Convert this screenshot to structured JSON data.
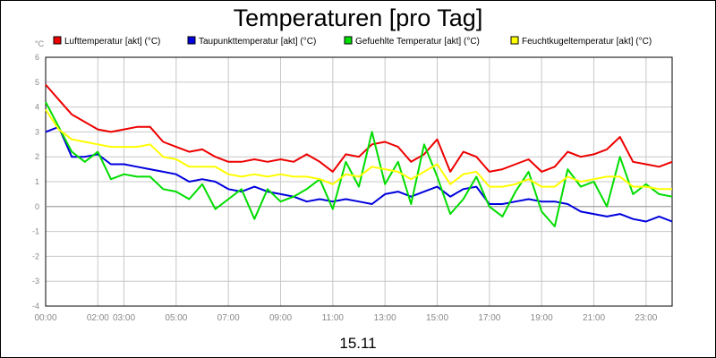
{
  "chart_data": {
    "type": "line",
    "title": "Temperaturen [pro Tag]",
    "unit_label": "°C",
    "xlabel": "15.11",
    "ylim": [
      -4,
      6
    ],
    "y_ticks": [
      "6",
      "5",
      "4",
      "3",
      "2",
      "1",
      "0",
      "-1",
      "-2",
      "-3",
      "-4"
    ],
    "x_ticks": [
      {
        "h": 0,
        "label": "00:00"
      },
      {
        "h": 2,
        "label": "02:00"
      },
      {
        "h": 3,
        "label": "03:00"
      },
      {
        "h": 5,
        "label": "05:00"
      },
      {
        "h": 7,
        "label": "07:00"
      },
      {
        "h": 9,
        "label": "09:00"
      },
      {
        "h": 11,
        "label": "11:00"
      },
      {
        "h": 13,
        "label": "13:00"
      },
      {
        "h": 15,
        "label": "15:00"
      },
      {
        "h": 17,
        "label": "17:00"
      },
      {
        "h": 19,
        "label": "19:00"
      },
      {
        "h": 21,
        "label": "21:00"
      },
      {
        "h": 23,
        "label": "23:00"
      }
    ],
    "grid": true,
    "legend_position": "top",
    "x": [
      0,
      0.5,
      1,
      1.5,
      2,
      2.5,
      3,
      3.5,
      4,
      4.5,
      5,
      5.5,
      6,
      6.5,
      7,
      7.5,
      8,
      8.5,
      9,
      9.5,
      10,
      10.5,
      11,
      11.5,
      12,
      12.5,
      13,
      13.5,
      14,
      14.5,
      15,
      15.5,
      16,
      16.5,
      17,
      17.5,
      18,
      18.5,
      19,
      19.5,
      20,
      20.5,
      21,
      21.5,
      22,
      22.5,
      23,
      23.5,
      24
    ],
    "series": [
      {
        "name": "Lufttemperatur [akt] (°C)",
        "color": "#ee0000",
        "values": [
          4.9,
          4.3,
          3.7,
          3.4,
          3.1,
          3.0,
          3.1,
          3.2,
          3.2,
          2.6,
          2.4,
          2.2,
          2.3,
          2.0,
          1.8,
          1.8,
          1.9,
          1.8,
          1.9,
          1.8,
          2.1,
          1.8,
          1.4,
          2.1,
          2.0,
          2.5,
          2.6,
          2.4,
          1.8,
          2.1,
          2.7,
          1.4,
          2.2,
          2.0,
          1.4,
          1.5,
          1.7,
          1.9,
          1.4,
          1.6,
          2.2,
          2.0,
          2.1,
          2.3,
          2.8,
          1.8,
          1.7,
          1.6,
          1.8
        ]
      },
      {
        "name": "Taupunkttemperatur [akt] (°C)",
        "color": "#0000dd",
        "values": [
          3.0,
          3.2,
          2.0,
          2.0,
          2.1,
          1.7,
          1.7,
          1.6,
          1.5,
          1.4,
          1.3,
          1.0,
          1.1,
          1.0,
          0.7,
          0.6,
          0.8,
          0.6,
          0.5,
          0.4,
          0.2,
          0.3,
          0.2,
          0.3,
          0.2,
          0.1,
          0.5,
          0.6,
          0.4,
          0.6,
          0.8,
          0.4,
          0.7,
          0.8,
          0.1,
          0.1,
          0.2,
          0.3,
          0.2,
          0.2,
          0.1,
          -0.2,
          -0.3,
          -0.4,
          -0.3,
          -0.5,
          -0.6,
          -0.4,
          -0.6
        ]
      },
      {
        "name": "Gefuehlte Temperatur [akt] (°C)",
        "color": "#00dd00",
        "values": [
          4.2,
          3.2,
          2.2,
          1.8,
          2.2,
          1.1,
          1.3,
          1.2,
          1.2,
          0.7,
          0.6,
          0.3,
          0.9,
          -0.1,
          0.3,
          0.7,
          -0.5,
          0.7,
          0.2,
          0.4,
          0.7,
          1.1,
          -0.1,
          1.8,
          0.8,
          3.0,
          0.9,
          1.8,
          0.1,
          2.5,
          1.2,
          -0.3,
          0.3,
          1.2,
          0.0,
          -0.4,
          0.6,
          1.4,
          -0.2,
          -0.8,
          1.5,
          0.8,
          1.0,
          0.0,
          2.0,
          0.5,
          0.9,
          0.5,
          0.4
        ]
      },
      {
        "name": "Feuchtkugeltemperatur [akt] (°C)",
        "color": "#ffff00",
        "values": [
          3.9,
          3.1,
          2.7,
          2.6,
          2.5,
          2.4,
          2.4,
          2.4,
          2.5,
          2.0,
          1.9,
          1.6,
          1.6,
          1.6,
          1.3,
          1.2,
          1.3,
          1.2,
          1.3,
          1.2,
          1.2,
          1.1,
          0.9,
          1.3,
          1.2,
          1.6,
          1.5,
          1.4,
          1.1,
          1.4,
          1.7,
          0.9,
          1.3,
          1.4,
          0.8,
          0.8,
          0.9,
          1.1,
          0.8,
          0.8,
          1.2,
          1.0,
          1.1,
          1.2,
          1.2,
          0.8,
          0.8,
          0.7,
          0.7
        ]
      }
    ]
  }
}
